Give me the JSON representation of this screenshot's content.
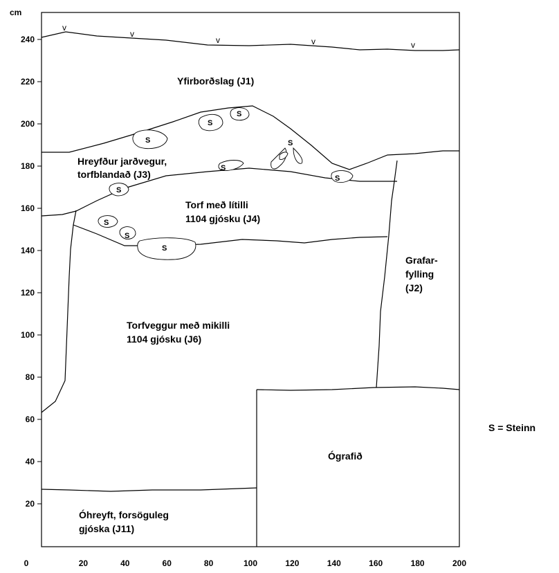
{
  "axes": {
    "y_unit": "cm",
    "y_ticks": [
      20,
      40,
      60,
      80,
      100,
      120,
      140,
      160,
      180,
      200,
      220,
      240
    ],
    "x_ticks": [
      0,
      20,
      40,
      60,
      80,
      100,
      120,
      140,
      160,
      180,
      200
    ],
    "y_range": [
      0,
      250
    ],
    "x_range": [
      0,
      200
    ]
  },
  "surface_marker": "v",
  "layers": [
    {
      "id": "J1",
      "lines": [
        "Yfirborðslag (J1)"
      ]
    },
    {
      "id": "J3",
      "lines": [
        "Hreyfður jarðvegur,",
        "torfblandað (J3)"
      ]
    },
    {
      "id": "J4",
      "lines": [
        "Torf með lítilli",
        "1104 gjósku (J4)"
      ]
    },
    {
      "id": "J2",
      "lines": [
        "Grafar-",
        "fylling",
        "(J2)"
      ]
    },
    {
      "id": "J6",
      "lines": [
        "Torfveggur með mikilli",
        "1104 gjósku (J6)"
      ]
    },
    {
      "id": "unexcavated",
      "lines": [
        "Ógrafið"
      ]
    },
    {
      "id": "J11",
      "lines": [
        "Óhreyft, forsöguleg",
        "gjóska (J11)"
      ]
    }
  ],
  "stone_mark": "S",
  "legend": {
    "text": "S = Steinn"
  }
}
